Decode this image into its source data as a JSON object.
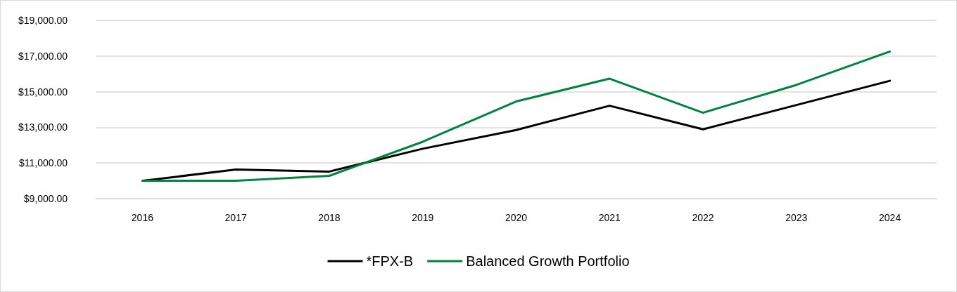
{
  "chart_data": {
    "type": "line",
    "categories": [
      "2016",
      "2017",
      "2018",
      "2019",
      "2020",
      "2021",
      "2022",
      "2023",
      "2024"
    ],
    "series": [
      {
        "name": "*FPX-B",
        "color": "#000000",
        "values": [
          10000,
          10630,
          10520,
          11800,
          12850,
          14210,
          12890,
          14250,
          15610
        ]
      },
      {
        "name": "Balanced Growth Portfolio",
        "color": "#00843d",
        "values": [
          10000,
          10000,
          10280,
          12190,
          14450,
          15730,
          13820,
          15380,
          17250
        ]
      }
    ],
    "ylim": [
      9000,
      19000
    ],
    "yticks": [
      {
        "value": 9000,
        "label": "$9,000.00"
      },
      {
        "value": 11000,
        "label": "$11,000.00"
      },
      {
        "value": 13000,
        "label": "$13,000.00"
      },
      {
        "value": 15000,
        "label": "$15,000.00"
      },
      {
        "value": 17000,
        "label": "$17,000.00"
      },
      {
        "value": 19000,
        "label": "$19,000.00"
      }
    ],
    "grid": "y",
    "legend": "bottom",
    "marker": "none",
    "line_style": "solid"
  }
}
